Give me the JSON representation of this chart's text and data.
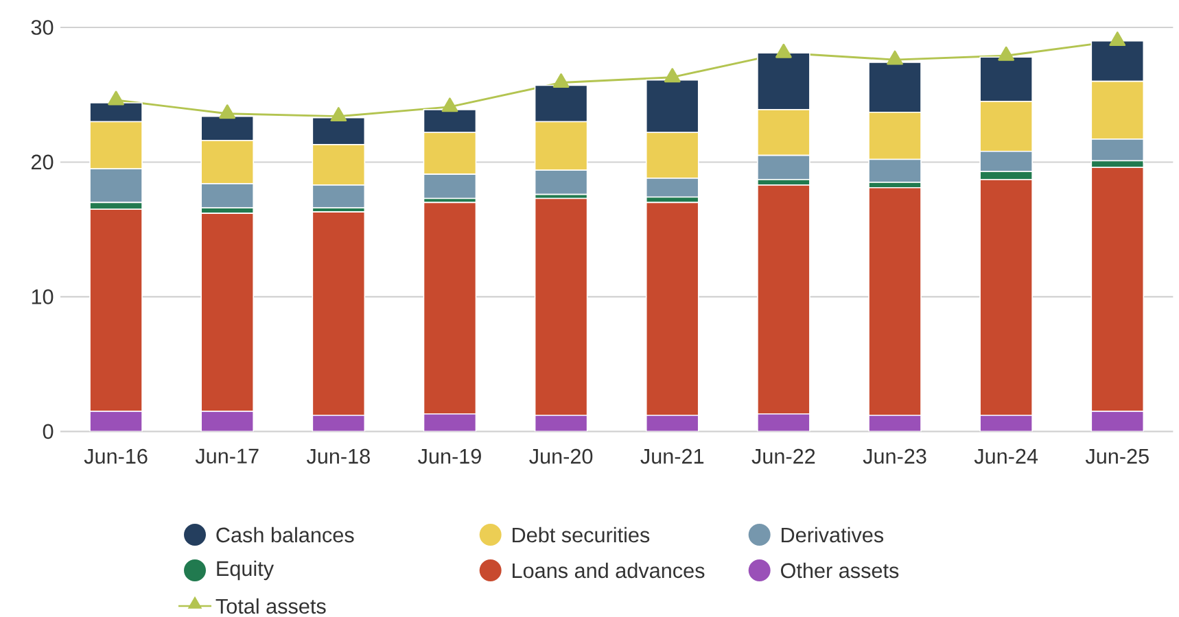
{
  "chart_data": {
    "type": "bar",
    "stacked": true,
    "categories": [
      "Jun-16",
      "Jun-17",
      "Jun-18",
      "Jun-19",
      "Jun-20",
      "Jun-21",
      "Jun-22",
      "Jun-23",
      "Jun-24",
      "Jun-25"
    ],
    "series": [
      {
        "name": "Other assets",
        "color": "#9a50b8",
        "values": [
          1.5,
          1.5,
          1.2,
          1.3,
          1.2,
          1.2,
          1.3,
          1.2,
          1.2,
          1.5
        ]
      },
      {
        "name": "Loans and advances",
        "color": "#c84a2e",
        "values": [
          15.0,
          14.7,
          15.1,
          15.7,
          16.1,
          15.8,
          17.0,
          16.9,
          17.5,
          18.1
        ]
      },
      {
        "name": "Equity",
        "color": "#217a4f",
        "values": [
          0.5,
          0.4,
          0.3,
          0.3,
          0.3,
          0.4,
          0.4,
          0.4,
          0.6,
          0.5
        ]
      },
      {
        "name": "Derivatives",
        "color": "#7697ad",
        "values": [
          2.5,
          1.8,
          1.7,
          1.8,
          1.8,
          1.4,
          1.8,
          1.7,
          1.5,
          1.6
        ]
      },
      {
        "name": "Debt securities",
        "color": "#ecce54",
        "values": [
          3.5,
          3.2,
          3.0,
          3.1,
          3.6,
          3.4,
          3.4,
          3.5,
          3.7,
          4.3
        ]
      },
      {
        "name": "Cash balances",
        "color": "#243e5e",
        "values": [
          1.4,
          1.8,
          2.0,
          1.7,
          2.7,
          3.9,
          4.2,
          3.7,
          3.3,
          3.0
        ]
      },
      {
        "name": "Total assets",
        "type": "line",
        "color": "#b3c450",
        "marker": "triangle",
        "values": [
          24.6,
          23.6,
          23.4,
          24.1,
          25.9,
          26.3,
          28.1,
          27.6,
          27.9,
          29.0
        ]
      }
    ],
    "ylim": [
      0,
      30
    ],
    "yticks": [
      0,
      10,
      20,
      30
    ],
    "grid": "y",
    "legend": "bottom"
  }
}
